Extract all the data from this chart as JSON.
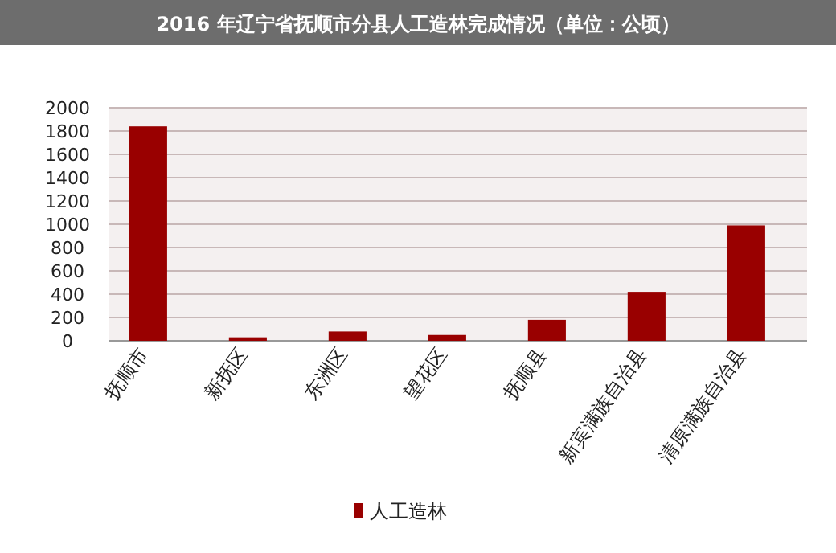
{
  "chart_data": {
    "type": "bar",
    "title": "2016 年辽宁省抚顺市分县人工造林完成情况（单位：公顷）",
    "categories": [
      "抚顺市",
      "新抚区",
      "东洲区",
      "望花区",
      "抚顺县",
      "新宾满族自治县",
      "清原满族自治县"
    ],
    "series": [
      {
        "name": "人工造林",
        "color": "#990000",
        "values": [
          1840,
          30,
          80,
          50,
          180,
          420,
          990
        ]
      }
    ],
    "ylim": [
      0,
      2000
    ],
    "yticks": [
      0,
      200,
      400,
      600,
      800,
      1000,
      1200,
      1400,
      1600,
      1800,
      2000
    ],
    "grid": "y",
    "legend": "bottom"
  }
}
